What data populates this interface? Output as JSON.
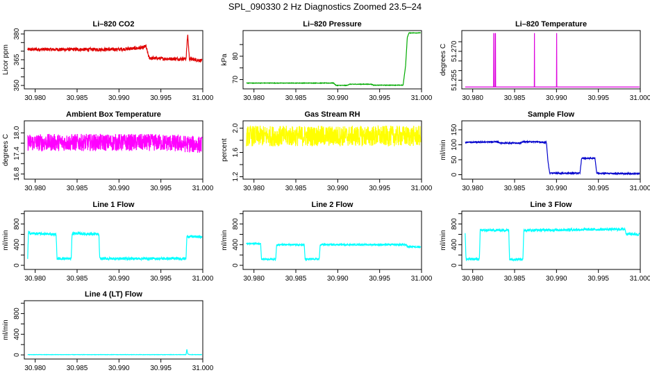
{
  "figure_title": "SPL_090330  2 Hz Diagnostics Zoomed 23.5–24",
  "chart_data": [
    {
      "name": "co2",
      "type": "line",
      "title": "Li–820 CO2",
      "ylabel": "Licor ppm",
      "color": "#e00000",
      "xlim": [
        30.9787,
        31.0
      ],
      "ylim": [
        348,
        382
      ],
      "xticks": [
        30.98,
        30.985,
        30.99,
        30.995,
        31.0
      ],
      "xtick_labels": [
        "30.980",
        "30.985",
        "30.990",
        "30.995",
        "31.000"
      ],
      "yticks": [
        350,
        365,
        380
      ],
      "ytick_labels": [
        "350",
        "365",
        "380"
      ],
      "yticks_minor": [
        355,
        360,
        370,
        375
      ],
      "noise": 1.0,
      "x": [
        30.9791,
        30.985,
        30.99,
        30.9929,
        30.9932,
        30.9936,
        30.996,
        30.998,
        30.9982,
        30.9984,
        30.9999
      ],
      "y": [
        371,
        371,
        371,
        372,
        373,
        366,
        365.5,
        365.5,
        380,
        365.5,
        364.5
      ]
    },
    {
      "name": "pressure",
      "type": "line",
      "title": "Li–820 Pressure",
      "ylabel": "kPa",
      "color": "#00aa00",
      "xlim": [
        30.9787,
        31.0
      ],
      "ylim": [
        66,
        91
      ],
      "xticks": [
        30.98,
        30.985,
        30.99,
        30.995,
        31.0
      ],
      "xtick_labels": [
        "30.980",
        "30.985",
        "30.990",
        "30.995",
        "31.000"
      ],
      "yticks": [
        70,
        80
      ],
      "ytick_labels": [
        "70",
        "80"
      ],
      "yticks_minor": [
        75,
        85
      ],
      "noise": 0.1,
      "x": [
        30.9791,
        30.9895,
        30.9898,
        30.9911,
        30.9914,
        30.994,
        30.9943,
        30.9978,
        30.9981,
        30.9983,
        30.9985,
        30.9999
      ],
      "y": [
        68.5,
        68.5,
        67.5,
        67.5,
        68.0,
        68.0,
        67.6,
        67.6,
        76,
        88,
        90,
        90
      ]
    },
    {
      "name": "temperature",
      "type": "line",
      "title": "Li–820 Temperature",
      "ylabel": "degrees C",
      "color": "#dd00dd",
      "xlim": [
        30.9787,
        31.0
      ],
      "ylim": [
        51.2505,
        51.2808
      ],
      "xticks": [
        30.98,
        30.985,
        30.99,
        30.995,
        31.0
      ],
      "xtick_labels": [
        "30.980",
        "30.985",
        "30.990",
        "30.995",
        "31.000"
      ],
      "yticks": [
        51.255,
        51.27
      ],
      "ytick_labels": [
        "51.255",
        "51.270"
      ],
      "yticks_minor": [
        51.26,
        51.265,
        51.275
      ],
      "noise": 0,
      "x": [
        30.9791,
        30.98248,
        30.9825,
        30.98252,
        30.98266,
        30.98268,
        30.9827,
        30.98272,
        30.98274,
        30.98276,
        30.98735,
        30.98737,
        30.98739,
        30.99,
        30.99002,
        30.99004,
        30.9999
      ],
      "y": [
        51.2515,
        51.2515,
        51.2795,
        51.2515,
        51.2515,
        51.2795,
        51.258,
        51.2795,
        51.2515,
        51.2515,
        51.2515,
        51.2795,
        51.2515,
        51.2515,
        51.2795,
        51.2515,
        51.2515
      ]
    },
    {
      "name": "ambient",
      "type": "line",
      "title": "Ambient Box Temperature",
      "ylabel": "degrees C",
      "color": "#ff00ff",
      "xlim": [
        30.9787,
        31.0
      ],
      "ylim": [
        16.65,
        18.35
      ],
      "xticks": [
        30.98,
        30.985,
        30.99,
        30.995,
        31.0
      ],
      "xtick_labels": [
        "30.980",
        "30.985",
        "30.990",
        "30.995",
        "31.000"
      ],
      "yticks": [
        16.8,
        17.4,
        18.0
      ],
      "ytick_labels": [
        "16.8",
        "17.4",
        "18.0"
      ],
      "yticks_minor": [
        17.1,
        17.7
      ],
      "noise": 0.25,
      "x": [
        30.9791,
        30.985,
        30.99,
        30.995,
        30.9999
      ],
      "y": [
        17.72,
        17.72,
        17.72,
        17.72,
        17.65
      ]
    },
    {
      "name": "rh",
      "type": "line",
      "title": "Gas Stream RH",
      "ylabel": "percent",
      "color": "#ffff00",
      "xlim": [
        30.9787,
        31.0
      ],
      "ylim": [
        1.16,
        2.12
      ],
      "xticks": [
        30.98,
        30.985,
        30.99,
        30.995,
        31.0
      ],
      "xtick_labels": [
        "30.980",
        "30.985",
        "30.990",
        "30.995",
        "31.000"
      ],
      "yticks": [
        1.2,
        1.6,
        2.0
      ],
      "ytick_labels": [
        "1.2",
        "1.6",
        "2.0"
      ],
      "yticks_minor": [
        1.4,
        1.8
      ],
      "noise": 0.17,
      "x": [
        30.9791,
        30.985,
        30.99,
        30.995,
        30.9999
      ],
      "y": [
        1.87,
        1.87,
        1.87,
        1.87,
        1.87
      ]
    },
    {
      "name": "sample_flow",
      "type": "line",
      "title": "Sample Flow",
      "ylabel": "ml/min",
      "color": "#0000cc",
      "xlim": [
        30.9787,
        31.0
      ],
      "ylim": [
        -15,
        180
      ],
      "xticks": [
        30.98,
        30.985,
        30.99,
        30.995,
        31.0
      ],
      "xtick_labels": [
        "30.980",
        "30.985",
        "30.990",
        "30.995",
        "31.000"
      ],
      "yticks": [
        0,
        50,
        100,
        150
      ],
      "ytick_labels": [
        "0",
        "50",
        "100",
        "150"
      ],
      "yticks_minor": [],
      "noise": 2,
      "x": [
        30.9791,
        30.983,
        30.9832,
        30.9858,
        30.986,
        30.9878,
        30.988,
        30.9888,
        30.989,
        30.9892,
        30.9928,
        30.993,
        30.9946,
        30.9948,
        30.9999
      ],
      "y": [
        108,
        110,
        106,
        106,
        110,
        110,
        108,
        108,
        40,
        5,
        5,
        55,
        55,
        5,
        3
      ]
    },
    {
      "name": "line1",
      "type": "line",
      "title": "Line 1 Flow",
      "ylabel": "ml/min",
      "color": "#00ffff",
      "xlim": [
        30.9787,
        31.0
      ],
      "ylim": [
        -80,
        1050
      ],
      "xticks": [
        30.98,
        30.985,
        30.99,
        30.995,
        31.0
      ],
      "xtick_labels": [
        "30.980",
        "30.985",
        "30.990",
        "30.995",
        "31.000"
      ],
      "yticks": [
        0,
        400,
        800
      ],
      "ytick_labels": [
        "0",
        "400",
        "800"
      ],
      "yticks_minor": [
        200,
        600,
        1000
      ],
      "noise": 25,
      "x": [
        30.9791,
        30.9792,
        30.9793,
        30.9825,
        30.9826,
        30.9843,
        30.9844,
        30.9876,
        30.9877,
        30.998,
        30.9981,
        30.9999
      ],
      "y": [
        130,
        650,
        620,
        600,
        130,
        130,
        620,
        600,
        130,
        130,
        560,
        550
      ]
    },
    {
      "name": "line2",
      "type": "line",
      "title": "Line 2 Flow",
      "ylabel": "ml/min",
      "color": "#00ffff",
      "xlim": [
        30.9787,
        31.0
      ],
      "ylim": [
        -80,
        1050
      ],
      "xticks": [
        30.98,
        30.985,
        30.99,
        30.995,
        31.0
      ],
      "xtick_labels": [
        "30.980",
        "30.985",
        "30.990",
        "30.995",
        "31.000"
      ],
      "yticks": [
        0,
        400,
        800
      ],
      "ytick_labels": [
        "0",
        "400",
        "800"
      ],
      "yticks_minor": [
        200,
        600,
        1000
      ],
      "noise": 15,
      "x": [
        30.9791,
        30.9808,
        30.9809,
        30.9826,
        30.9827,
        30.986,
        30.9861,
        30.9878,
        30.9879,
        30.9982,
        30.9983,
        30.9999
      ],
      "y": [
        420,
        420,
        120,
        120,
        400,
        400,
        120,
        120,
        400,
        400,
        360,
        360
      ]
    },
    {
      "name": "line3",
      "type": "line",
      "title": "Line 3 Flow",
      "ylabel": "ml/min",
      "color": "#00ffff",
      "xlim": [
        30.9787,
        31.0
      ],
      "ylim": [
        -80,
        1050
      ],
      "xticks": [
        30.98,
        30.985,
        30.99,
        30.995,
        31.0
      ],
      "xtick_labels": [
        "30.980",
        "30.985",
        "30.990",
        "30.995",
        "31.000"
      ],
      "yticks": [
        0,
        400,
        800
      ],
      "ytick_labels": [
        "0",
        "400",
        "800"
      ],
      "yticks_minor": [
        200,
        600,
        1000
      ],
      "noise": 25,
      "x": [
        30.9791,
        30.9792,
        30.9793,
        30.9808,
        30.9809,
        30.9843,
        30.9844,
        30.986,
        30.9861,
        30.9982,
        30.9983,
        30.9999
      ],
      "y": [
        620,
        120,
        120,
        120,
        680,
        680,
        120,
        120,
        680,
        700,
        610,
        600
      ]
    },
    {
      "name": "line4",
      "type": "line",
      "title": "Line 4 (LT) Flow",
      "ylabel": "ml/min",
      "color": "#00ffff",
      "xlim": [
        30.9787,
        31.0
      ],
      "ylim": [
        -80,
        1050
      ],
      "xticks": [
        30.98,
        30.985,
        30.99,
        30.995,
        31.0
      ],
      "xtick_labels": [
        "30.980",
        "30.985",
        "30.990",
        "30.995",
        "31.000"
      ],
      "yticks": [
        0,
        400,
        800
      ],
      "ytick_labels": [
        "0",
        "400",
        "800"
      ],
      "yticks_minor": [
        200,
        600,
        1000
      ],
      "noise": 3,
      "x": [
        30.9791,
        30.998,
        30.9981,
        30.9982,
        30.9984,
        30.9999
      ],
      "y": [
        5,
        5,
        110,
        20,
        5,
        5
      ]
    }
  ]
}
